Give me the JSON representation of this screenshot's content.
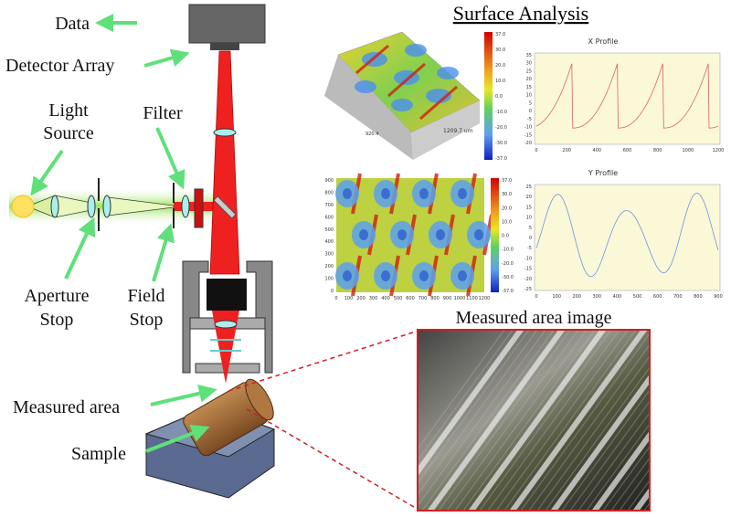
{
  "labels": {
    "data": "Data",
    "detector": "Detector Array",
    "light_source": [
      "Light",
      "Source"
    ],
    "filter": "Filter",
    "aperture_stop": [
      "Aperture",
      "Stop"
    ],
    "field_stop": [
      "Field",
      "Stop"
    ],
    "measured_area": "Measured area",
    "sample": "Sample"
  },
  "surface_analysis": {
    "title": "Surface Analysis",
    "map3d": {
      "x_label": "920.4",
      "y_label": "1209.7 um",
      "colorbar": [
        "37.0",
        "30.0",
        "20.0",
        "10.0",
        "0.0",
        "-10.0",
        "-20.0",
        "-30.0",
        "-37.0"
      ]
    },
    "map2d": {
      "yticks": [
        "900",
        "800",
        "700",
        "600",
        "500",
        "400",
        "300",
        "200",
        "100",
        "0"
      ],
      "xticks": [
        "0",
        "100",
        "200",
        "300",
        "400",
        "500",
        "600",
        "700",
        "800",
        "900",
        "1000",
        "1100",
        "1200"
      ],
      "colorbar": [
        "37.0",
        "30.0",
        "20.0",
        "10.0",
        "0.0",
        "-10.0",
        "-20.0",
        "-30.0",
        "-37.0"
      ]
    },
    "x_profile": {
      "title": "X Profile",
      "yticks": [
        "35",
        "30",
        "25",
        "20",
        "15",
        "10",
        "5",
        "0",
        "-5",
        "-10",
        "-15",
        "-20"
      ],
      "xticks": [
        "0",
        "200",
        "400",
        "600",
        "800",
        "1000",
        "1200"
      ]
    },
    "y_profile": {
      "title": "Y Profile",
      "yticks": [
        "25",
        "20",
        "15",
        "10",
        "5",
        "0",
        "-5",
        "-10",
        "-15",
        "-20",
        "-25"
      ],
      "xticks": [
        "0",
        "100",
        "200",
        "300",
        "400",
        "500",
        "600",
        "700",
        "800",
        "900"
      ]
    }
  },
  "image": {
    "title": "Measured area image"
  }
}
